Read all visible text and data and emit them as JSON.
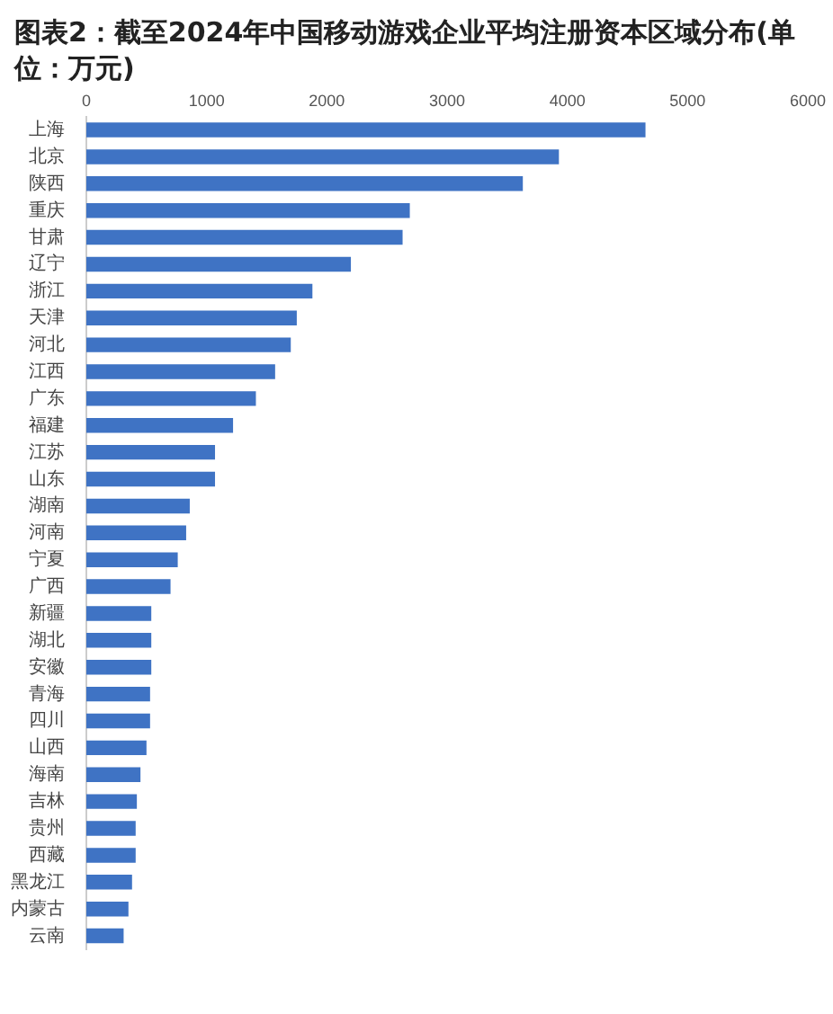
{
  "chart_data": {
    "type": "bar",
    "orientation": "horizontal",
    "title": "图表2：截至2024年中国移动游戏企业平均注册资本区域分布(单位：万元)",
    "categories": [
      "上海",
      "北京",
      "陕西",
      "重庆",
      "甘肃",
      "辽宁",
      "浙江",
      "天津",
      "河北",
      "江西",
      "广东",
      "福建",
      "江苏",
      "山东",
      "湖南",
      "河南",
      "宁夏",
      "广西",
      "新疆",
      "湖北",
      "安徽",
      "青海",
      "四川",
      "山西",
      "海南",
      "吉林",
      "贵州",
      "西藏",
      "黑龙江",
      "内蒙古",
      "云南"
    ],
    "values": [
      4650,
      3930,
      3630,
      2690,
      2630,
      2200,
      1880,
      1750,
      1700,
      1570,
      1410,
      1220,
      1070,
      1070,
      860,
      830,
      760,
      700,
      540,
      540,
      540,
      530,
      530,
      500,
      450,
      420,
      410,
      410,
      380,
      350,
      310
    ],
    "color": "#3f73c4",
    "xlim": [
      0,
      6000
    ],
    "xticks": [
      0,
      1000,
      2000,
      3000,
      4000,
      5000,
      6000
    ],
    "grid": false,
    "legend": false
  }
}
